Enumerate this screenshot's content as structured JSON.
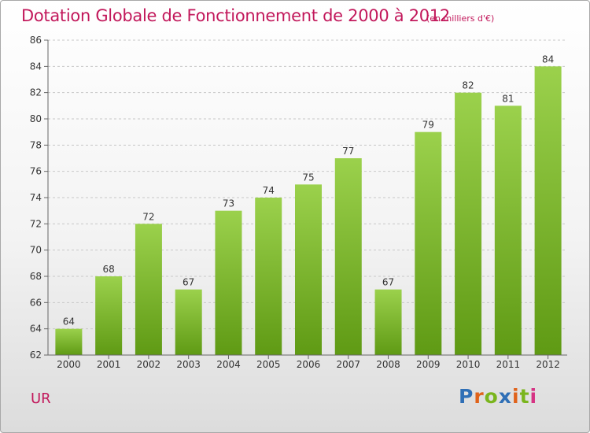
{
  "header": {
    "title": "Dotation Globale de Fonctionnement de 2000 à 2012",
    "unit": "(en milliers d'€)"
  },
  "footer": {
    "commune": "UR",
    "logo_letters": [
      "P",
      "r",
      "o",
      "x",
      "i",
      "t",
      "i"
    ]
  },
  "colors": {
    "accent": "#c2185b",
    "bar_top": "#9bd14c",
    "bar_bottom": "#5f9a14",
    "grid": "#c8c8c8"
  },
  "chart_data": {
    "type": "bar",
    "title": "Dotation Globale de Fonctionnement de 2000 à 2012",
    "subtitle": "(en milliers d'€)",
    "xlabel": "",
    "ylabel": "",
    "categories": [
      "2000",
      "2001",
      "2002",
      "2003",
      "2004",
      "2005",
      "2006",
      "2007",
      "2008",
      "2009",
      "2010",
      "2011",
      "2012"
    ],
    "values": [
      64,
      68,
      72,
      67,
      73,
      74,
      75,
      77,
      67,
      79,
      82,
      81,
      84
    ],
    "ylim": [
      62,
      86
    ],
    "yticks": [
      62,
      64,
      66,
      68,
      70,
      72,
      74,
      76,
      78,
      80,
      82,
      84,
      86
    ],
    "grid": true,
    "data_labels": true
  }
}
